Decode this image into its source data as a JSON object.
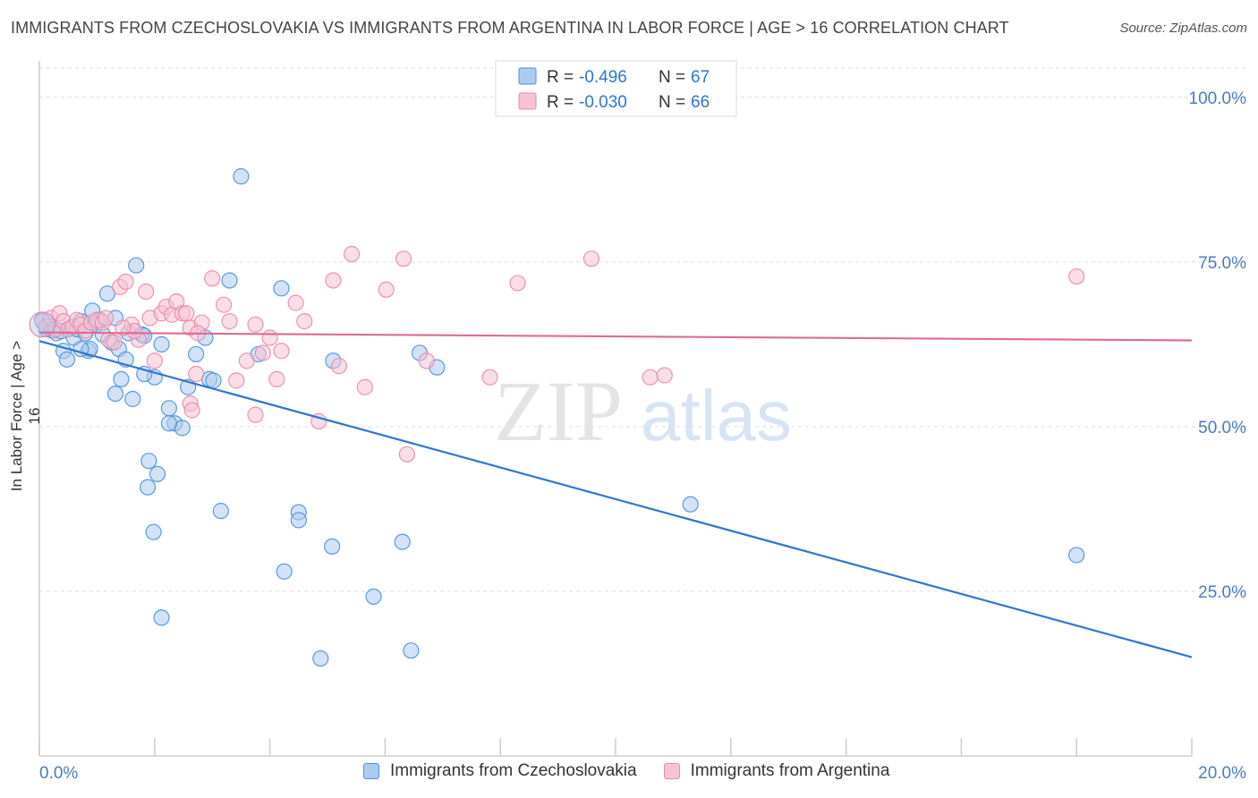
{
  "title": "IMMIGRANTS FROM CZECHOSLOVAKIA VS IMMIGRANTS FROM ARGENTINA IN LABOR FORCE | AGE > 16 CORRELATION CHART",
  "source": "Source: ZipAtlas.com",
  "watermark": {
    "zip": "ZIP",
    "atlas": "atlas"
  },
  "colors": {
    "blue": "#4a90d9",
    "blue_fill": "#aecbef",
    "blue_line": "#2e75d1",
    "pink": "#e888aa",
    "pink_fill": "#f6c3d4",
    "pink_line": "#e06a95",
    "axis_text": "#4a7cc0",
    "grid": "#dddddd"
  },
  "stats": [
    {
      "r_label": "R = ",
      "r_value": "-0.496",
      "n_label": "N = ",
      "n_value": "67"
    },
    {
      "r_label": "R = ",
      "r_value": "-0.030",
      "n_label": "N = ",
      "n_value": "66"
    }
  ],
  "chart_data": {
    "type": "scatter",
    "title": "IMMIGRANTS FROM CZECHOSLOVAKIA VS IMMIGRANTS FROM ARGENTINA IN LABOR FORCE | AGE > 16 CORRELATION CHART",
    "xlabel": "",
    "ylabel": "In Labor Force | Age > 16",
    "xlim": [
      0,
      20
    ],
    "ylim": [
      0,
      105
    ],
    "x_tick_labels": [
      "0.0%",
      "20.0%"
    ],
    "y_ticks": [
      25,
      50,
      75,
      100
    ],
    "y_tick_labels": [
      "25.0%",
      "50.0%",
      "75.0%",
      "100.0%"
    ],
    "grid": true,
    "legend_position": "bottom",
    "series": [
      {
        "name": "Immigrants from Czechoslovakia",
        "color": "#4a90d9",
        "trend": {
          "x": [
            0,
            20
          ],
          "y": [
            63.0,
            15.0
          ]
        },
        "points": [
          [
            0.05,
            66.2
          ],
          [
            0.12,
            64.8
          ],
          [
            0.18,
            65.2
          ],
          [
            0.22,
            64.6
          ],
          [
            0.3,
            64.2
          ],
          [
            0.38,
            64.5
          ],
          [
            0.42,
            61.5
          ],
          [
            0.48,
            60.2
          ],
          [
            0.55,
            65.0
          ],
          [
            0.6,
            63.5
          ],
          [
            0.65,
            64.8
          ],
          [
            0.72,
            66.0
          ],
          [
            0.8,
            64.2
          ],
          [
            0.85,
            61.5
          ],
          [
            0.88,
            61.8
          ],
          [
            0.92,
            67.6
          ],
          [
            0.98,
            65.5
          ],
          [
            1.05,
            66.2
          ],
          [
            1.1,
            64.0
          ],
          [
            1.18,
            70.2
          ],
          [
            1.25,
            62.8
          ],
          [
            1.32,
            66.5
          ],
          [
            1.38,
            61.8
          ],
          [
            1.42,
            57.2
          ],
          [
            1.5,
            60.2
          ],
          [
            1.55,
            64.2
          ],
          [
            1.62,
            54.2
          ],
          [
            1.68,
            74.5
          ],
          [
            1.78,
            64.0
          ],
          [
            1.82,
            63.8
          ],
          [
            2.0,
            57.5
          ],
          [
            2.05,
            42.8
          ],
          [
            2.12,
            62.5
          ],
          [
            2.25,
            52.8
          ],
          [
            2.35,
            50.5
          ],
          [
            2.48,
            49.8
          ],
          [
            2.58,
            56.0
          ],
          [
            2.72,
            61.0
          ],
          [
            2.95,
            57.2
          ],
          [
            3.5,
            88.0
          ],
          [
            3.8,
            61.0
          ],
          [
            3.3,
            72.2
          ],
          [
            4.2,
            71.0
          ],
          [
            4.5,
            37.0
          ],
          [
            5.1,
            60.0
          ],
          [
            5.8,
            24.2
          ],
          [
            6.6,
            61.2
          ],
          [
            6.9,
            59.0
          ],
          [
            4.88,
            14.8
          ],
          [
            6.45,
            16.0
          ],
          [
            1.32,
            55.0
          ],
          [
            1.9,
            44.8
          ],
          [
            1.98,
            34.0
          ],
          [
            2.12,
            21.0
          ],
          [
            1.88,
            40.8
          ],
          [
            3.15,
            37.2
          ],
          [
            2.25,
            50.5
          ],
          [
            3.02,
            57.0
          ],
          [
            4.25,
            28.0
          ],
          [
            4.5,
            35.8
          ],
          [
            5.08,
            31.8
          ],
          [
            6.3,
            32.5
          ],
          [
            0.72,
            61.8
          ],
          [
            2.88,
            63.5
          ],
          [
            11.3,
            38.2
          ],
          [
            18.0,
            30.5
          ],
          [
            1.82,
            58.0
          ]
        ]
      },
      {
        "name": "Immigrants from Argentina",
        "color": "#e888aa",
        "trend": {
          "x": [
            0,
            20
          ],
          "y": [
            64.3,
            63.1
          ]
        },
        "points": [
          [
            0.05,
            66.0
          ],
          [
            0.12,
            65.2
          ],
          [
            0.2,
            66.5
          ],
          [
            0.28,
            64.8
          ],
          [
            0.35,
            67.2
          ],
          [
            0.42,
            66.0
          ],
          [
            0.5,
            64.8
          ],
          [
            0.58,
            65.2
          ],
          [
            0.65,
            66.2
          ],
          [
            0.72,
            65.5
          ],
          [
            0.8,
            64.6
          ],
          [
            0.9,
            65.8
          ],
          [
            1.0,
            66.2
          ],
          [
            1.1,
            65.8
          ],
          [
            1.2,
            63.2
          ],
          [
            1.3,
            62.8
          ],
          [
            1.4,
            71.2
          ],
          [
            1.5,
            72.0
          ],
          [
            1.6,
            65.5
          ],
          [
            1.72,
            63.2
          ],
          [
            1.85,
            70.5
          ],
          [
            1.92,
            66.5
          ],
          [
            2.0,
            60.0
          ],
          [
            2.12,
            67.2
          ],
          [
            2.2,
            68.2
          ],
          [
            2.3,
            67.0
          ],
          [
            2.38,
            69.0
          ],
          [
            2.48,
            67.2
          ],
          [
            2.55,
            67.2
          ],
          [
            2.62,
            65.0
          ],
          [
            2.72,
            58.0
          ],
          [
            2.82,
            65.8
          ],
          [
            3.0,
            72.5
          ],
          [
            3.2,
            68.5
          ],
          [
            3.3,
            66.0
          ],
          [
            3.42,
            57.0
          ],
          [
            3.6,
            60.0
          ],
          [
            3.75,
            65.5
          ],
          [
            3.88,
            61.2
          ],
          [
            4.0,
            63.5
          ],
          [
            4.12,
            57.2
          ],
          [
            4.2,
            61.5
          ],
          [
            4.45,
            68.8
          ],
          [
            4.6,
            66.0
          ],
          [
            4.85,
            50.8
          ],
          [
            5.1,
            72.2
          ],
          [
            5.2,
            59.2
          ],
          [
            5.42,
            76.2
          ],
          [
            5.65,
            56.0
          ],
          [
            6.02,
            70.8
          ],
          [
            6.32,
            75.5
          ],
          [
            6.38,
            45.8
          ],
          [
            6.72,
            60.0
          ],
          [
            7.82,
            57.5
          ],
          [
            8.3,
            71.8
          ],
          [
            9.58,
            75.5
          ],
          [
            10.6,
            57.5
          ],
          [
            10.85,
            57.8
          ],
          [
            18.0,
            72.8
          ],
          [
            2.62,
            53.5
          ],
          [
            2.65,
            52.5
          ],
          [
            3.75,
            51.8
          ],
          [
            1.65,
            64.5
          ],
          [
            1.45,
            65.0
          ],
          [
            2.75,
            64.2
          ],
          [
            1.15,
            66.5
          ]
        ]
      }
    ]
  }
}
